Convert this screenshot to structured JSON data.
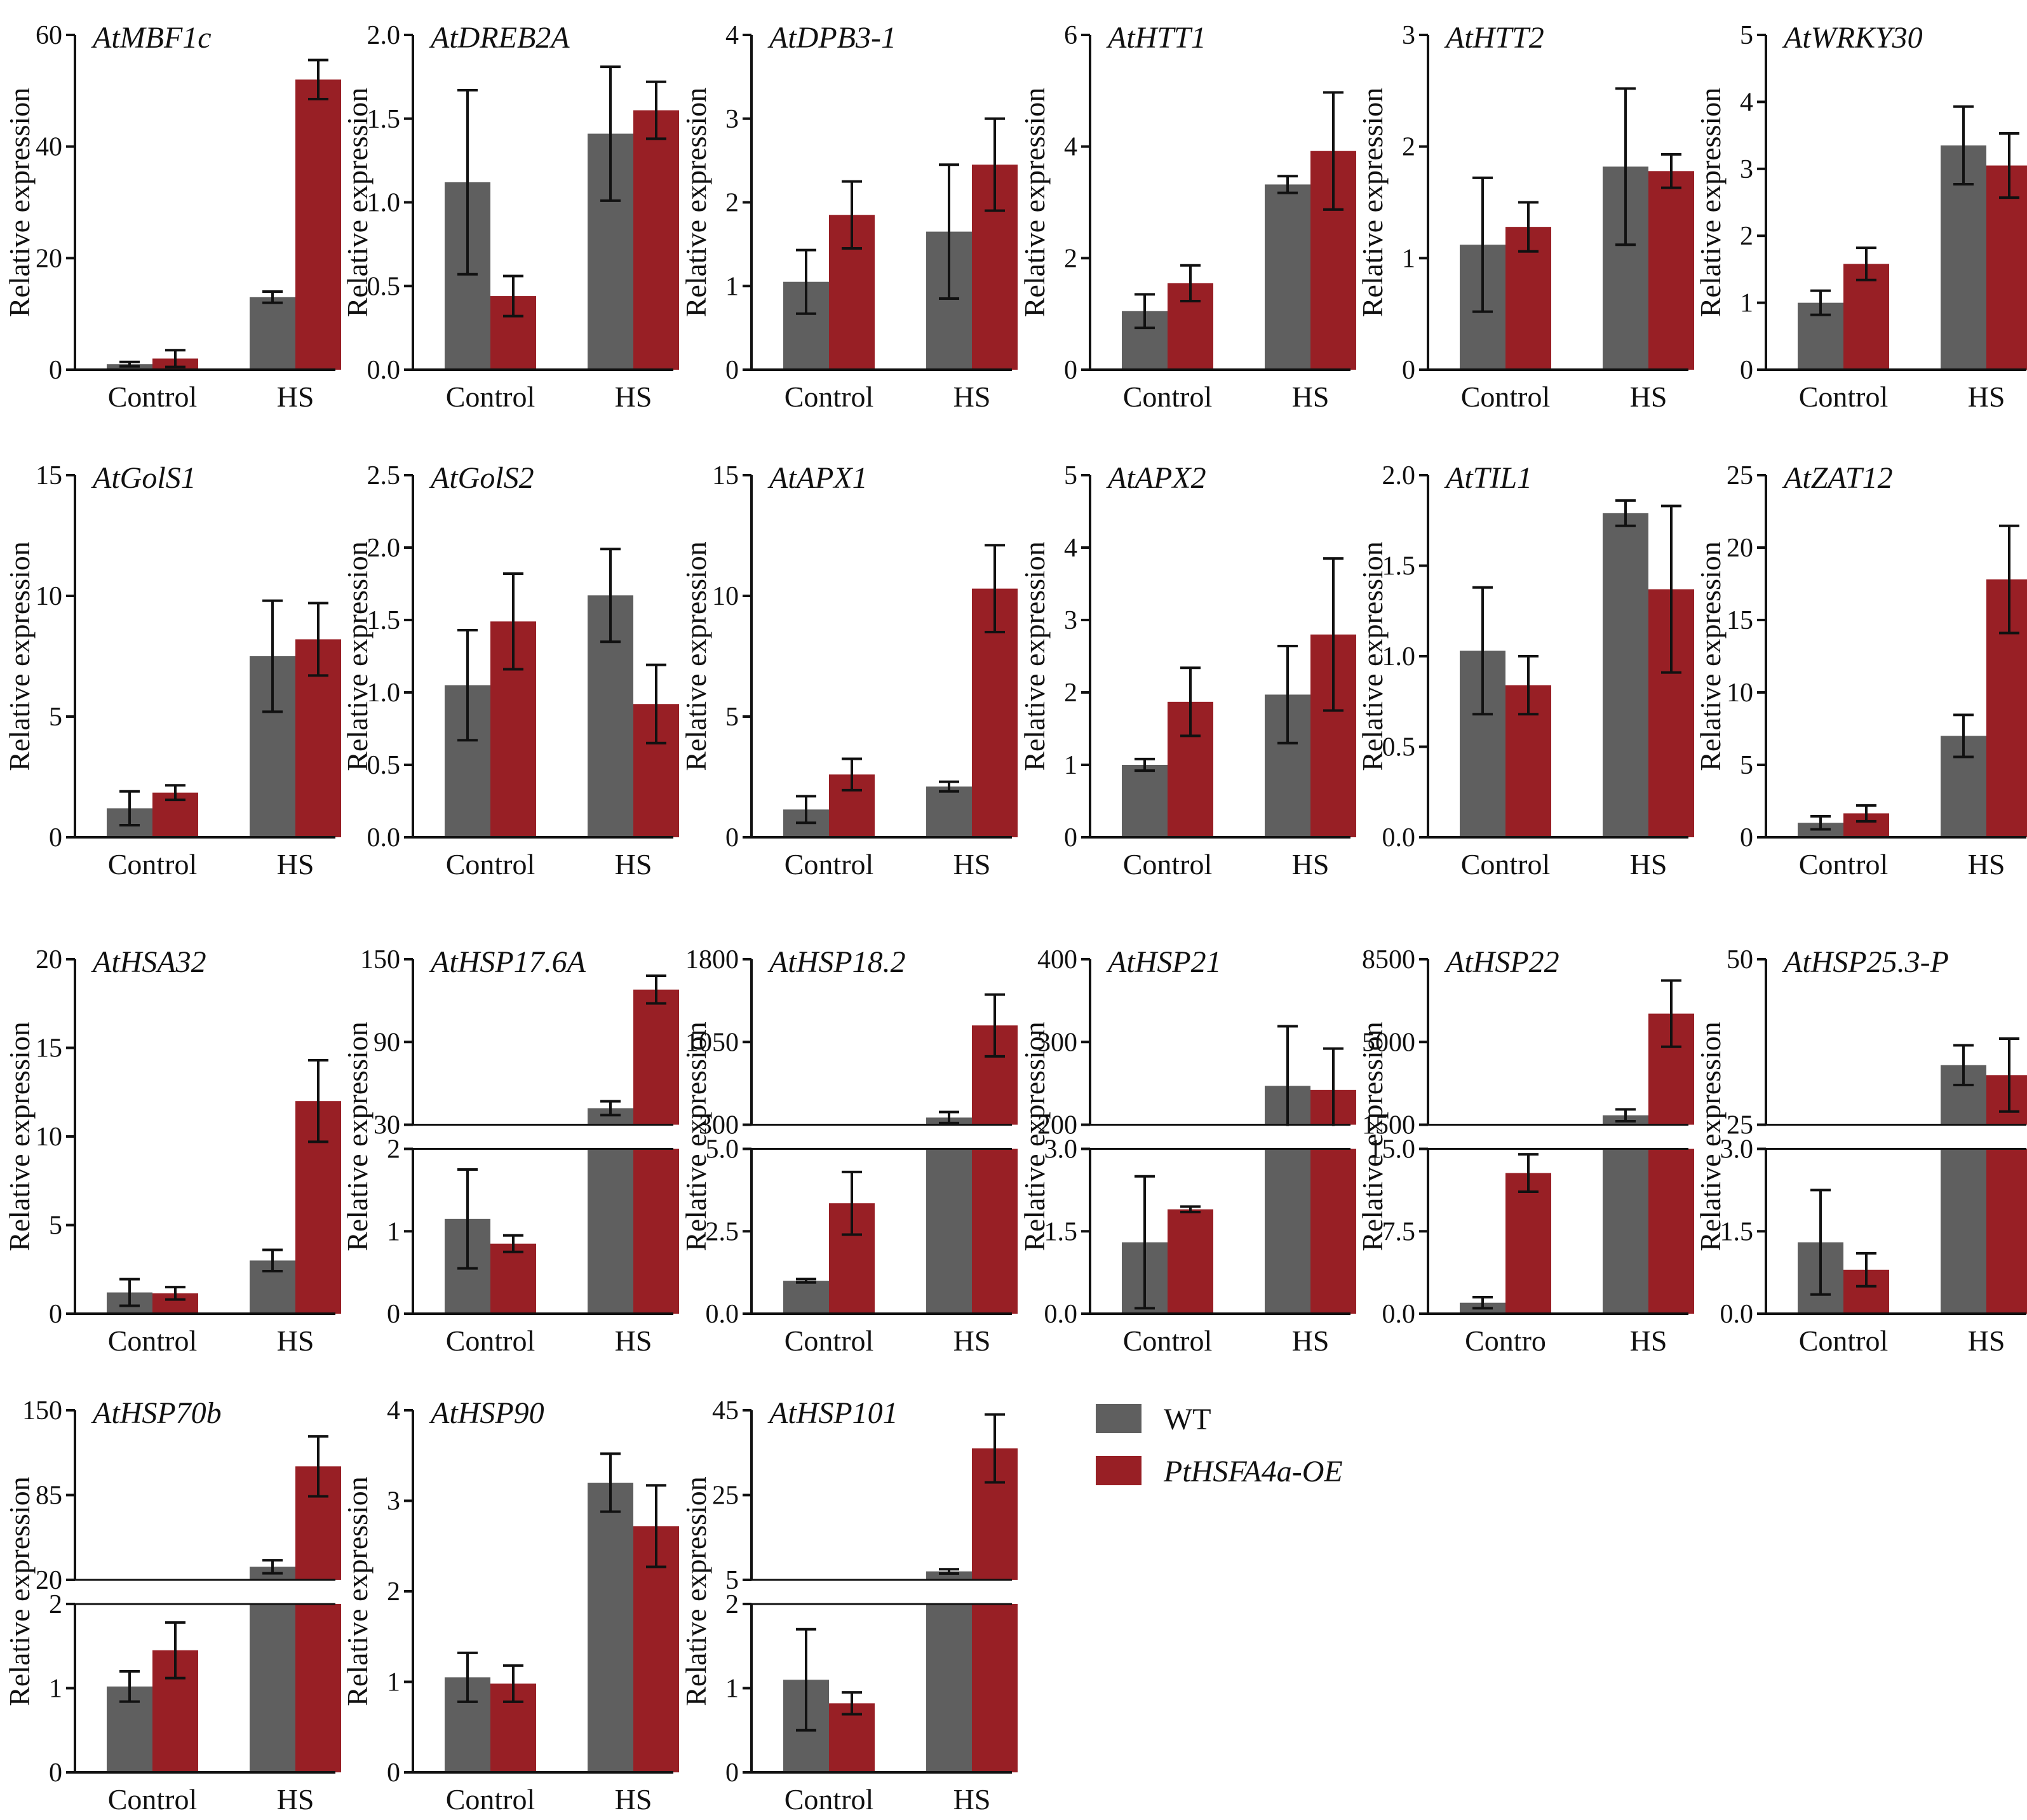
{
  "legend": {
    "wt_label": "WT",
    "oe_label": "PtHSFA4a-OE",
    "wt_color": "#5f5f5f",
    "oe_color": "#981f25"
  },
  "chart_data": [
    {
      "type": "bar",
      "title": "AtMBF1c",
      "ylabel": "Relative expression",
      "categories": [
        "Control",
        "HS"
      ],
      "series": [
        {
          "name": "WT",
          "values": [
            1.0,
            13.0
          ],
          "errors": [
            0.4,
            1.0
          ]
        },
        {
          "name": "PtHSFA4a-OE",
          "values": [
            2.0,
            52.0
          ],
          "errors": [
            1.5,
            3.5
          ]
        }
      ],
      "ylim": [
        0,
        60
      ],
      "yticks": [
        0,
        20,
        40,
        60
      ],
      "ytick_labels": [
        "0",
        "20",
        "40",
        "60"
      ]
    },
    {
      "type": "bar",
      "title": "AtDREB2A",
      "ylabel": "Relative expression",
      "categories": [
        "Control",
        "HS"
      ],
      "series": [
        {
          "name": "WT",
          "values": [
            1.12,
            1.41
          ],
          "errors": [
            0.55,
            0.4
          ]
        },
        {
          "name": "PtHSFA4a-OE",
          "values": [
            0.44,
            1.55
          ],
          "errors": [
            0.12,
            0.17
          ]
        }
      ],
      "ylim": [
        0,
        2
      ],
      "yticks": [
        0,
        0.5,
        1,
        1.5,
        2
      ],
      "ytick_labels": [
        "0.0",
        "0.5",
        "1.0",
        "1.5",
        "2.0"
      ]
    },
    {
      "type": "bar",
      "title": "AtDPB3-1",
      "ylabel": "Relative expression",
      "categories": [
        "Control",
        "HS"
      ],
      "series": [
        {
          "name": "WT",
          "values": [
            1.05,
            1.65
          ],
          "errors": [
            0.38,
            0.8
          ]
        },
        {
          "name": "PtHSFA4a-OE",
          "values": [
            1.85,
            2.45
          ],
          "errors": [
            0.4,
            0.55
          ]
        }
      ],
      "ylim": [
        0,
        4
      ],
      "yticks": [
        0,
        1,
        2,
        3,
        4
      ],
      "ytick_labels": [
        "0",
        "1",
        "2",
        "3",
        "4"
      ]
    },
    {
      "type": "bar",
      "title": "AtHTT1",
      "ylabel": "Relative expression",
      "categories": [
        "Control",
        "HS"
      ],
      "series": [
        {
          "name": "WT",
          "values": [
            1.05,
            3.32
          ],
          "errors": [
            0.3,
            0.15
          ]
        },
        {
          "name": "PtHSFA4a-OE",
          "values": [
            1.55,
            3.92
          ],
          "errors": [
            0.32,
            1.05
          ]
        }
      ],
      "ylim": [
        0,
        6
      ],
      "yticks": [
        0,
        2,
        4,
        6
      ],
      "ytick_labels": [
        "0",
        "2",
        "4",
        "6"
      ]
    },
    {
      "type": "bar",
      "title": "AtHTT2",
      "ylabel": "Relative expression",
      "categories": [
        "Control",
        "HS"
      ],
      "series": [
        {
          "name": "WT",
          "values": [
            1.12,
            1.82
          ],
          "errors": [
            0.6,
            0.7
          ]
        },
        {
          "name": "PtHSFA4a-OE",
          "values": [
            1.28,
            1.78
          ],
          "errors": [
            0.22,
            0.15
          ]
        }
      ],
      "ylim": [
        0,
        3
      ],
      "yticks": [
        0,
        1,
        2,
        3
      ],
      "ytick_labels": [
        "0",
        "1",
        "2",
        "3"
      ]
    },
    {
      "type": "bar",
      "title": "AtWRKY30",
      "ylabel": "Relative expression",
      "categories": [
        "Control",
        "HS"
      ],
      "series": [
        {
          "name": "WT",
          "values": [
            1.0,
            3.35
          ],
          "errors": [
            0.18,
            0.58
          ]
        },
        {
          "name": "PtHSFA4a-OE",
          "values": [
            1.58,
            3.05
          ],
          "errors": [
            0.24,
            0.48
          ]
        }
      ],
      "ylim": [
        0,
        5
      ],
      "yticks": [
        0,
        1,
        2,
        3,
        4,
        5
      ],
      "ytick_labels": [
        "0",
        "1",
        "2",
        "3",
        "4",
        "5"
      ]
    },
    {
      "type": "bar",
      "title": "AtGolS1",
      "ylabel": "Relative expression",
      "categories": [
        "Control",
        "HS"
      ],
      "series": [
        {
          "name": "WT",
          "values": [
            1.2,
            7.5
          ],
          "errors": [
            0.7,
            2.3
          ]
        },
        {
          "name": "PtHSFA4a-OE",
          "values": [
            1.85,
            8.2
          ],
          "errors": [
            0.3,
            1.5
          ]
        }
      ],
      "ylim": [
        0,
        15
      ],
      "yticks": [
        0,
        5,
        10,
        15
      ],
      "ytick_labels": [
        "0",
        "5",
        "10",
        "15"
      ]
    },
    {
      "type": "bar",
      "title": "AtGolS2",
      "ylabel": "Relative expression",
      "categories": [
        "Control",
        "HS"
      ],
      "series": [
        {
          "name": "WT",
          "values": [
            1.05,
            1.67
          ],
          "errors": [
            0.38,
            0.32
          ]
        },
        {
          "name": "PtHSFA4a-OE",
          "values": [
            1.49,
            0.92
          ],
          "errors": [
            0.33,
            0.27
          ]
        }
      ],
      "ylim": [
        0,
        2.5
      ],
      "yticks": [
        0,
        0.5,
        1,
        1.5,
        2,
        2.5
      ],
      "ytick_labels": [
        "0.0",
        "0.5",
        "1.0",
        "1.5",
        "2.0",
        "2.5"
      ]
    },
    {
      "type": "bar",
      "title": "AtAPX1",
      "ylabel": "Relative expression",
      "categories": [
        "Control",
        "HS"
      ],
      "series": [
        {
          "name": "WT",
          "values": [
            1.15,
            2.1
          ],
          "errors": [
            0.55,
            0.2
          ]
        },
        {
          "name": "PtHSFA4a-OE",
          "values": [
            2.6,
            10.3
          ],
          "errors": [
            0.65,
            1.8
          ]
        }
      ],
      "ylim": [
        0,
        15
      ],
      "yticks": [
        0,
        5,
        10,
        15
      ],
      "ytick_labels": [
        "0",
        "5",
        "10",
        "15"
      ]
    },
    {
      "type": "bar",
      "title": "AtAPX2",
      "ylabel": "Relative expression",
      "categories": [
        "Control",
        "HS"
      ],
      "series": [
        {
          "name": "WT",
          "values": [
            1.0,
            1.97
          ],
          "errors": [
            0.08,
            0.67
          ]
        },
        {
          "name": "PtHSFA4a-OE",
          "values": [
            1.87,
            2.8
          ],
          "errors": [
            0.47,
            1.05
          ]
        }
      ],
      "ylim": [
        0,
        5
      ],
      "yticks": [
        0,
        1,
        2,
        3,
        4,
        5
      ],
      "ytick_labels": [
        "0",
        "1",
        "2",
        "3",
        "4",
        "5"
      ]
    },
    {
      "type": "bar",
      "title": "AtTIL1",
      "ylabel": "Relative expression",
      "categories": [
        "Control",
        "HS"
      ],
      "series": [
        {
          "name": "WT",
          "values": [
            1.03,
            1.79
          ],
          "errors": [
            0.35,
            0.07
          ]
        },
        {
          "name": "PtHSFA4a-OE",
          "values": [
            0.84,
            1.37
          ],
          "errors": [
            0.16,
            0.46
          ]
        }
      ],
      "ylim": [
        0,
        2
      ],
      "yticks": [
        0,
        0.5,
        1,
        1.5,
        2
      ],
      "ytick_labels": [
        "0.0",
        "0.5",
        "1.0",
        "1.5",
        "2.0"
      ]
    },
    {
      "type": "bar",
      "title": "AtZAT12",
      "ylabel": "Relative expression",
      "categories": [
        "Control",
        "HS"
      ],
      "series": [
        {
          "name": "WT",
          "values": [
            1.0,
            7.0
          ],
          "errors": [
            0.45,
            1.45
          ]
        },
        {
          "name": "PtHSFA4a-OE",
          "values": [
            1.65,
            17.8
          ],
          "errors": [
            0.55,
            3.7
          ]
        }
      ],
      "ylim": [
        0,
        25
      ],
      "yticks": [
        0,
        5,
        10,
        15,
        20,
        25
      ],
      "ytick_labels": [
        "0",
        "5",
        "10",
        "15",
        "20",
        "25"
      ]
    },
    {
      "type": "bar",
      "title": "AtHSA32",
      "ylabel": "Relative expression",
      "categories": [
        "Control",
        "HS"
      ],
      "series": [
        {
          "name": "WT",
          "values": [
            1.2,
            3.0
          ],
          "errors": [
            0.75,
            0.6
          ]
        },
        {
          "name": "PtHSFA4a-OE",
          "values": [
            1.15,
            12.0
          ],
          "errors": [
            0.35,
            2.3
          ]
        }
      ],
      "ylim": [
        0,
        20
      ],
      "yticks": [
        0,
        5,
        10,
        15,
        20
      ],
      "ytick_labels": [
        "0",
        "5",
        "10",
        "15",
        "20"
      ]
    },
    {
      "type": "bar",
      "title": "AtHSP17.6A",
      "ylabel": "Relative expression",
      "categories": [
        "Control",
        "HS"
      ],
      "broken_axis": true,
      "series": [
        {
          "name": "WT",
          "values": [
            1.15,
            42.0
          ],
          "errors": [
            0.6,
            5.0
          ]
        },
        {
          "name": "PtHSFA4a-OE",
          "values": [
            0.85,
            128.0
          ],
          "errors": [
            0.1,
            10.0
          ]
        }
      ],
      "lower_ylim": [
        0,
        2
      ],
      "lower_yticks": [
        0,
        1,
        2
      ],
      "lower_ytick_labels": [
        "0",
        "1",
        "2"
      ],
      "upper_ylim": [
        30,
        150
      ],
      "upper_yticks": [
        30,
        90,
        150
      ],
      "upper_ytick_labels": [
        "30",
        "90",
        "150"
      ]
    },
    {
      "type": "bar",
      "title": "AtHSP18.2",
      "ylabel": "Relative expression",
      "categories": [
        "Control",
        "HS"
      ],
      "broken_axis": true,
      "series": [
        {
          "name": "WT",
          "values": [
            1.0,
            365.0
          ],
          "errors": [
            0.05,
            50.0
          ]
        },
        {
          "name": "PtHSFA4a-OE",
          "values": [
            3.35,
            1200.0
          ],
          "errors": [
            0.95,
            280.0
          ]
        }
      ],
      "lower_ylim": [
        0,
        5
      ],
      "lower_yticks": [
        0,
        2.5,
        5
      ],
      "lower_ytick_labels": [
        "0.0",
        "2.5",
        "5.0"
      ],
      "upper_ylim": [
        300,
        1800
      ],
      "upper_yticks": [
        300,
        1050,
        1800
      ],
      "upper_ytick_labels": [
        "300",
        "1050",
        "1800"
      ]
    },
    {
      "type": "bar",
      "title": "AtHSP21",
      "ylabel": "Relative expression",
      "categories": [
        "Control",
        "HS"
      ],
      "broken_axis": true,
      "series": [
        {
          "name": "WT",
          "values": [
            1.3,
            247.0
          ],
          "errors": [
            1.2,
            72.0
          ]
        },
        {
          "name": "PtHSFA4a-OE",
          "values": [
            1.9,
            242.0
          ],
          "errors": [
            0.05,
            50.0
          ]
        }
      ],
      "lower_ylim": [
        0,
        3
      ],
      "lower_yticks": [
        0,
        1.5,
        3
      ],
      "lower_ytick_labels": [
        "0.0",
        "1.5",
        "3.0"
      ],
      "upper_ylim": [
        200,
        400
      ],
      "upper_yticks": [
        200,
        300,
        400
      ],
      "upper_ytick_labels": [
        "200",
        "300",
        "400"
      ]
    },
    {
      "type": "bar",
      "title": "AtHSP22",
      "ylabel": "Relative expression",
      "categories": [
        "Contro",
        "HS"
      ],
      "broken_axis": true,
      "series": [
        {
          "name": "WT",
          "values": [
            1.0,
            1900.0
          ],
          "errors": [
            0.5,
            250.0
          ]
        },
        {
          "name": "PtHSFA4a-OE",
          "values": [
            12.8,
            6200.0
          ],
          "errors": [
            1.7,
            1400.0
          ]
        }
      ],
      "lower_ylim": [
        0,
        15
      ],
      "lower_yticks": [
        0,
        7.5,
        15
      ],
      "lower_ytick_labels": [
        "0.0",
        "7.5",
        "15.0"
      ],
      "upper_ylim": [
        1500,
        8500
      ],
      "upper_yticks": [
        1500,
        5000,
        8500
      ],
      "upper_ytick_labels": [
        "1500",
        "5000",
        "8500"
      ]
    },
    {
      "type": "bar",
      "title": "AtHSP25.3-P",
      "ylabel": "Relative expression",
      "categories": [
        "Control",
        "HS"
      ],
      "broken_axis": true,
      "series": [
        {
          "name": "WT",
          "values": [
            1.3,
            34.0
          ],
          "errors": [
            0.95,
            3.0
          ]
        },
        {
          "name": "PtHSFA4a-OE",
          "values": [
            0.8,
            32.5
          ],
          "errors": [
            0.3,
            5.5
          ]
        }
      ],
      "lower_ylim": [
        0,
        3
      ],
      "lower_yticks": [
        0,
        1.5,
        3
      ],
      "lower_ytick_labels": [
        "0.0",
        "1.5",
        "3.0"
      ],
      "upper_ylim": [
        25,
        50
      ],
      "upper_yticks": [
        25,
        50
      ],
      "upper_ytick_labels": [
        "25",
        "50"
      ]
    },
    {
      "type": "bar",
      "title": "AtHSP70b",
      "ylabel": "Relative expression",
      "categories": [
        "Control",
        "HS"
      ],
      "broken_axis": true,
      "series": [
        {
          "name": "WT",
          "values": [
            1.02,
            30.0
          ],
          "errors": [
            0.18,
            5.0
          ]
        },
        {
          "name": "PtHSFA4a-OE",
          "values": [
            1.45,
            107.0
          ],
          "errors": [
            0.33,
            23.0
          ]
        }
      ],
      "lower_ylim": [
        0,
        2
      ],
      "lower_yticks": [
        0,
        1,
        2
      ],
      "lower_ytick_labels": [
        "0",
        "1",
        "2"
      ],
      "upper_ylim": [
        20,
        150
      ],
      "upper_yticks": [
        20,
        85,
        150
      ],
      "upper_ytick_labels": [
        "20",
        "85",
        "150"
      ]
    },
    {
      "type": "bar",
      "title": "AtHSP90",
      "ylabel": "Relative expression",
      "categories": [
        "Control",
        "HS"
      ],
      "series": [
        {
          "name": "WT",
          "values": [
            1.05,
            3.2
          ],
          "errors": [
            0.27,
            0.32
          ]
        },
        {
          "name": "PtHSFA4a-OE",
          "values": [
            0.98,
            2.72
          ],
          "errors": [
            0.2,
            0.45
          ]
        }
      ],
      "ylim": [
        0,
        4
      ],
      "yticks": [
        0,
        1,
        2,
        3,
        4
      ],
      "ytick_labels": [
        "0",
        "1",
        "2",
        "3",
        "4"
      ]
    },
    {
      "type": "bar",
      "title": "AtHSP101",
      "ylabel": "Relative expression",
      "categories": [
        "Control",
        "HS"
      ],
      "broken_axis": true,
      "series": [
        {
          "name": "WT",
          "values": [
            1.1,
            7.0
          ],
          "errors": [
            0.6,
            0.5
          ]
        },
        {
          "name": "PtHSFA4a-OE",
          "values": [
            0.82,
            36.0
          ],
          "errors": [
            0.13,
            8.0
          ]
        }
      ],
      "lower_ylim": [
        0,
        2
      ],
      "lower_yticks": [
        0,
        1,
        2
      ],
      "lower_ytick_labels": [
        "0",
        "1",
        "2"
      ],
      "upper_ylim": [
        5,
        45
      ],
      "upper_yticks": [
        5,
        25,
        45
      ],
      "upper_ytick_labels": [
        "5",
        "25",
        "45"
      ]
    }
  ]
}
